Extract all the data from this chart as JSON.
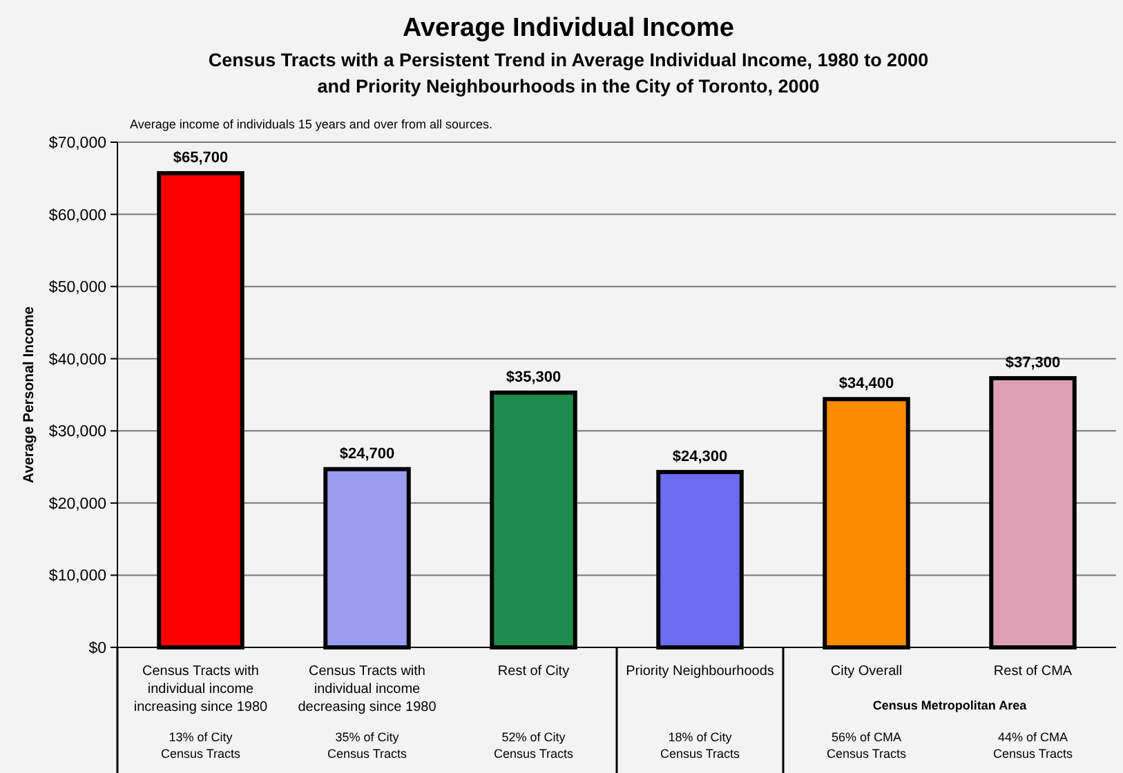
{
  "chart_data": {
    "type": "bar",
    "title": "Average Individual Income",
    "subtitle": "Census Tracts with a Persistent Trend in Average Individual Income, 1980 to 2000 and Priority Neighbourhoods in the City of Toronto, 2000",
    "ylabel": "Average Personal Income",
    "categories": [
      "Census Tracts with individual income increasing since 1980",
      "Census Tracts with individual income decreasing since 1980",
      "Rest of City",
      "Priority Neighbourhoods",
      "City Overall",
      "Rest of CMA"
    ],
    "values": [
      65700,
      24700,
      35300,
      24300,
      34400,
      37300
    ],
    "value_labels": [
      "$65,700",
      "$24,700",
      "$35,300",
      "$24,300",
      "$34,400",
      "$37,300"
    ],
    "colors": [
      "#ff0000",
      "#9a9cf0",
      "#1e8a4c",
      "#6c6cf0",
      "#ff8c00",
      "#dca0b4"
    ],
    "ylim": [
      0,
      70000
    ],
    "yticks": [
      {
        "value": 0,
        "label": "$0"
      },
      {
        "value": 10000,
        "label": "$10,000"
      },
      {
        "value": 20000,
        "label": "$20,000"
      },
      {
        "value": 30000,
        "label": "$30,000"
      },
      {
        "value": 40000,
        "label": "$40,000"
      },
      {
        "value": 50000,
        "label": "$50,000"
      },
      {
        "value": 60000,
        "label": "$60,000"
      },
      {
        "value": 70000,
        "label": "$70,000"
      }
    ],
    "grid": "y",
    "annotations": [
      "Average income of individuals 15 years and over from all sources.",
      "13% of City Census Tracts",
      "35% of City Census Tracts",
      "52% of City Census Tracts",
      "18% of City Census Tracts",
      "56% of CMA Census Tracts",
      "44% of CMA Census Tracts",
      "Census Metropolitan Area"
    ]
  }
}
